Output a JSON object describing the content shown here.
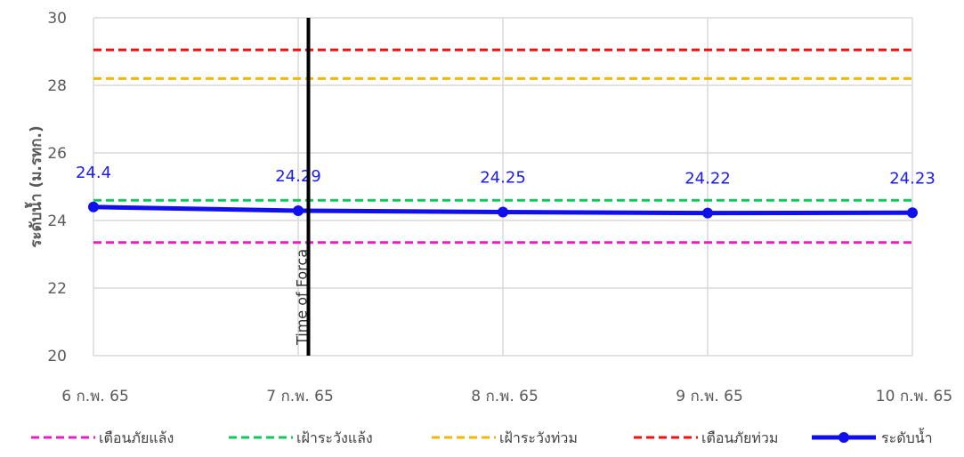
{
  "chart_data": {
    "type": "line",
    "title": "",
    "xlabel": "",
    "ylabel": "ระดับน้ำ (ม.รทก.)",
    "ylim": [
      20,
      30
    ],
    "yticks": [
      "20",
      "22",
      "24",
      "26",
      "28",
      "30"
    ],
    "categories": [
      "6 ก.พ. 65",
      "7 ก.พ. 65",
      "8 ก.พ. 65",
      "9 ก.พ. 65",
      "10 ก.พ. 65"
    ],
    "grid": true,
    "legend_position": "bottom",
    "series": [
      {
        "name": "เตือนภัยแล้ง",
        "values": [
          23.35,
          23.35,
          23.35,
          23.35,
          23.35
        ],
        "color": "#e91ec0",
        "style": "dashed"
      },
      {
        "name": "เฝ้าระวังแล้ง",
        "values": [
          24.6,
          24.6,
          24.6,
          24.6,
          24.6
        ],
        "color": "#12c75c",
        "style": "dashed"
      },
      {
        "name": "เฝ้าระวังท่วม",
        "values": [
          28.2,
          28.2,
          28.2,
          28.2,
          28.2
        ],
        "color": "#f2b705",
        "style": "dashed"
      },
      {
        "name": "เตือนภัยท่วม",
        "values": [
          29.05,
          29.05,
          29.05,
          29.05,
          29.05
        ],
        "color": "#ee1111",
        "style": "dashed"
      },
      {
        "name": "ระดับน้ำ",
        "values": [
          24.4,
          24.29,
          24.25,
          24.22,
          24.23
        ],
        "labels": [
          "24.4",
          "24.29",
          "24.25",
          "24.22",
          "24.23"
        ],
        "color": "#1010ee",
        "style": "solid-markers"
      }
    ],
    "annotation": {
      "text": "Time of Forca",
      "at_category_index": 1.05,
      "color": "#000000"
    }
  }
}
